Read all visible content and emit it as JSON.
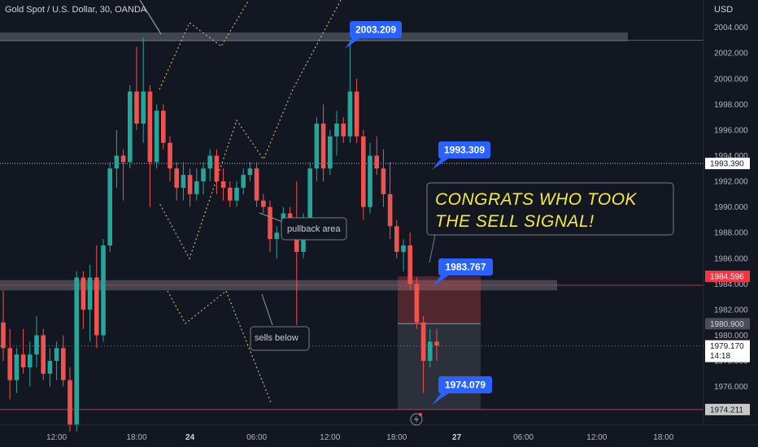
{
  "header": {
    "symbol_line": "Gold Spot / U.S. Dollar, 30, OANDA",
    "currency": "USD"
  },
  "annotations": {
    "callout": "CONGRATS WHO TOOK THE SELL SIGNAL!",
    "pullback": "pullback area",
    "sells_below": "sells below",
    "labels": [
      "2003.209",
      "1993.309",
      "1983.767",
      "1974.079"
    ]
  },
  "axis_badges": {
    "b1993": "1993.390",
    "b1984": "1984.596",
    "b1980": "1980.900",
    "current_price": "1979.170",
    "countdown": "14:18",
    "b1974": "1974.211"
  },
  "colors": {
    "up": "#26a69a",
    "down": "#ef5350",
    "label_blue": "#2962ff",
    "callout_yellow": "#f5e942"
  },
  "chart_data": {
    "type": "candlestick",
    "title": "Gold Spot / U.S. Dollar, 30, OANDA",
    "ylabel": "USD",
    "ylim": [
      1973.0,
      2005.5
    ],
    "y_ticks": [
      1976,
      1978,
      1980,
      1982,
      1984,
      1986,
      1988,
      1990,
      1992,
      1994,
      1996,
      1998,
      2000,
      2002,
      2004
    ],
    "x_ticks": [
      {
        "label": "12:00",
        "bar": 8
      },
      {
        "label": "18:00",
        "bar": 20
      },
      {
        "label": "24",
        "bar": 28
      },
      {
        "label": "06:00",
        "bar": 38
      },
      {
        "label": "12:00",
        "bar": 49
      },
      {
        "label": "18:00",
        "bar": 59
      },
      {
        "label": "27",
        "bar": 68
      },
      {
        "label": "06:00",
        "bar": 78
      },
      {
        "label": "12:00",
        "bar": 89
      },
      {
        "label": "18:00",
        "bar": 99
      }
    ],
    "candles": [
      [
        1981.0,
        1983.5,
        1978.0,
        1979.0
      ],
      [
        1979.0,
        1980.5,
        1975.0,
        1976.5
      ],
      [
        1976.5,
        1979.0,
        1975.5,
        1978.5
      ],
      [
        1978.5,
        1980.5,
        1977.0,
        1977.5
      ],
      [
        1977.5,
        1979.5,
        1976.0,
        1978.5
      ],
      [
        1978.5,
        1981.5,
        1977.5,
        1980.0
      ],
      [
        1980.0,
        1980.5,
        1976.5,
        1977.0
      ],
      [
        1977.0,
        1979.0,
        1976.0,
        1978.0
      ],
      [
        1978.0,
        1979.5,
        1976.5,
        1979.0
      ],
      [
        1979.0,
        1980.0,
        1976.0,
        1976.5
      ],
      [
        1976.5,
        1977.5,
        1972.5,
        1973.0
      ],
      [
        1973.0,
        1985.0,
        1972.5,
        1984.5
      ],
      [
        1984.5,
        1985.0,
        1980.5,
        1982.0
      ],
      [
        1982.0,
        1985.5,
        1979.5,
        1984.5
      ],
      [
        1984.5,
        1987.0,
        1979.0,
        1980.0
      ],
      [
        1980.0,
        1987.5,
        1979.5,
        1987.0
      ],
      [
        1987.0,
        1993.5,
        1986.5,
        1993.0
      ],
      [
        1993.0,
        1996.0,
        1991.5,
        1994.0
      ],
      [
        1994.0,
        1994.5,
        1990.5,
        1993.5
      ],
      [
        1993.5,
        1999.5,
        1993.0,
        1999.0
      ],
      [
        1999.0,
        2002.5,
        1996.0,
        1996.5
      ],
      [
        1996.5,
        2003.2,
        1995.0,
        1999.0
      ],
      [
        1999.0,
        1999.5,
        1990.0,
        1993.5
      ],
      [
        1993.5,
        1998.0,
        1993.0,
        1997.5
      ],
      [
        1997.5,
        1998.0,
        1994.5,
        1995.0
      ],
      [
        1995.0,
        1995.5,
        1992.0,
        1993.0
      ],
      [
        1993.0,
        1993.5,
        1990.5,
        1991.5
      ],
      [
        1991.5,
        1993.5,
        1990.5,
        1992.5
      ],
      [
        1992.5,
        1993.0,
        1990.0,
        1991.0
      ],
      [
        1991.0,
        1993.0,
        1990.5,
        1992.0
      ],
      [
        1992.0,
        1993.5,
        1991.0,
        1993.0
      ],
      [
        1993.0,
        1994.5,
        1992.0,
        1994.0
      ],
      [
        1994.0,
        1994.5,
        1991.0,
        1992.0
      ],
      [
        1992.0,
        1993.0,
        1990.5,
        1991.5
      ],
      [
        1991.5,
        1992.0,
        1990.0,
        1990.5
      ],
      [
        1990.5,
        1992.0,
        1990.0,
        1991.5
      ],
      [
        1991.5,
        1993.0,
        1991.0,
        1992.5
      ],
      [
        1992.5,
        1993.5,
        1992.0,
        1993.0
      ],
      [
        1993.0,
        1993.5,
        1990.0,
        1990.5
      ],
      [
        1990.5,
        1991.0,
        1989.5,
        1990.0
      ],
      [
        1990.0,
        1990.5,
        1986.5,
        1987.5
      ],
      [
        1987.5,
        1988.5,
        1986.0,
        1988.0
      ],
      [
        1988.0,
        1990.0,
        1987.5,
        1989.5
      ],
      [
        1989.5,
        1990.0,
        1987.5,
        1988.5
      ],
      [
        1988.5,
        1992.0,
        1980.8,
        1986.5
      ],
      [
        1986.5,
        1989.5,
        1986.0,
        1989.0
      ],
      [
        1989.0,
        1993.5,
        1988.5,
        1993.0
      ],
      [
        1993.0,
        1997.0,
        1992.0,
        1996.5
      ],
      [
        1996.5,
        1998.0,
        1992.0,
        1993.0
      ],
      [
        1993.0,
        1996.0,
        1992.5,
        1995.5
      ],
      [
        1995.5,
        1997.5,
        1994.0,
        1996.5
      ],
      [
        1996.5,
        1997.0,
        1995.0,
        1995.5
      ],
      [
        1995.5,
        2003.0,
        1995.0,
        1999.0
      ],
      [
        1999.0,
        2000.0,
        1995.0,
        1995.5
      ],
      [
        1995.5,
        1996.0,
        1989.0,
        1990.0
      ],
      [
        1990.0,
        1995.0,
        1989.5,
        1994.0
      ],
      [
        1994.0,
        1995.5,
        1992.5,
        1993.0
      ],
      [
        1993.0,
        1994.5,
        1990.0,
        1991.0
      ],
      [
        1991.0,
        1993.5,
        1987.5,
        1988.5
      ],
      [
        1988.5,
        1989.0,
        1986.0,
        1986.5
      ],
      [
        1986.5,
        1987.5,
        1985.0,
        1987.0
      ],
      [
        1987.0,
        1988.0,
        1983.5,
        1984.0
      ],
      [
        1984.0,
        1984.5,
        1980.5,
        1981.0
      ],
      [
        1981.0,
        1981.5,
        1975.5,
        1978.0
      ],
      [
        1978.0,
        1980.5,
        1977.5,
        1979.5
      ],
      [
        1979.5,
        1980.5,
        1978.0,
        1979.2
      ]
    ],
    "levels": [
      2003.209,
      1993.309,
      1983.767,
      1974.079
    ],
    "resistance_zone": [
      2002.9,
      2003.6
    ],
    "support_zone": [
      1983.5,
      1984.3
    ],
    "short_position": {
      "entry": 1980.9,
      "stop": 1984.596,
      "target": 1974.211
    },
    "current_price": 1979.17
  }
}
